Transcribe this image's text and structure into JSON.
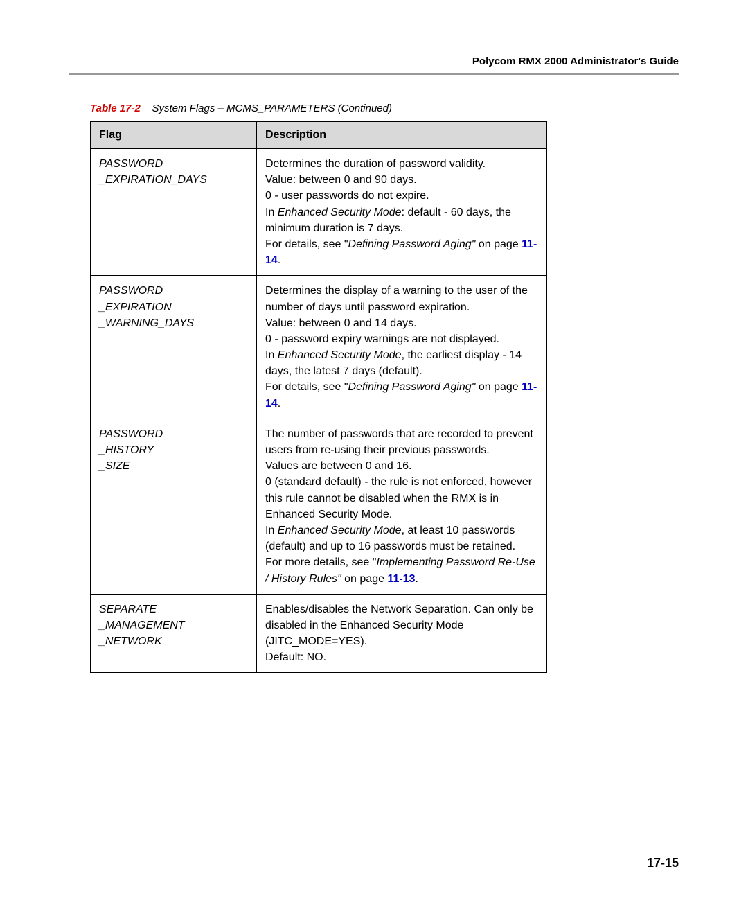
{
  "header": {
    "guide_title": "Polycom RMX 2000 Administrator's Guide"
  },
  "caption": {
    "prefix": "Table 17-2",
    "title": "System Flags – MCMS_PARAMETERS (Continued)"
  },
  "table": {
    "headers": {
      "flag": "Flag",
      "description": "Description"
    },
    "rows": [
      {
        "flag_lines": [
          "PASSWORD",
          "_EXPIRATION_DAYS"
        ],
        "desc": {
          "l1": "Determines the duration of password validity.",
          "l2": "Value: between 0 and 90 days.",
          "l3": "0 - user passwords do not expire.",
          "l4a": "In ",
          "l4b": "Enhanced Security Mode",
          "l4c": ": default - 60 days, the minimum duration is 7 days.",
          "l5a": "For details, see \"",
          "l5b": "Defining Password Aging\"",
          "l5c": " on page ",
          "page_ref": "11-14",
          "l5d": "."
        }
      },
      {
        "flag_lines": [
          "PASSWORD",
          "_EXPIRATION",
          "_WARNING_DAYS"
        ],
        "desc": {
          "l1": "Determines the display of a warning to the user of the number of days until password expiration.",
          "l2": "Value: between 0 and 14 days.",
          "l3": "0 - password expiry warnings are not displayed.",
          "l4a": "In ",
          "l4b": "Enhanced Security Mode",
          "l4c": ", the earliest display - 14 days, the latest 7 days (default).",
          "l5a": "For details, see \"",
          "l5b": "Defining Password Aging\"",
          "l5c": " on page ",
          "page_ref": "11-14",
          "l5d": "."
        }
      },
      {
        "flag_lines": [
          "PASSWORD",
          "_HISTORY",
          "_SIZE"
        ],
        "desc": {
          "l1": "The number of passwords that are recorded to prevent users from re-using their previous passwords.",
          "l2": "Values are between 0 and 16.",
          "l3": "0 (standard default) - the rule is not enforced, however this rule cannot be disabled when the RMX is in Enhanced Security Mode.",
          "l4a": "In ",
          "l4b": "Enhanced Security Mode",
          "l4c": ", at least 10 passwords (default) and up to 16 passwords must be retained.",
          "l5a": "For more details, see \"",
          "l5b": "Implementing Password Re-Use / History Rules\"",
          "l5c": " on page ",
          "page_ref": "11-13",
          "l5d": "."
        }
      },
      {
        "flag_lines": [
          "SEPARATE",
          "_MANAGEMENT",
          "_NETWORK"
        ],
        "desc": {
          "l1": "Enables/disables the Network Separation. Can only be disabled in the Enhanced Security Mode (JITC_MODE=YES).",
          "l2": "Default: NO."
        }
      }
    ]
  },
  "page_number": "17-15"
}
